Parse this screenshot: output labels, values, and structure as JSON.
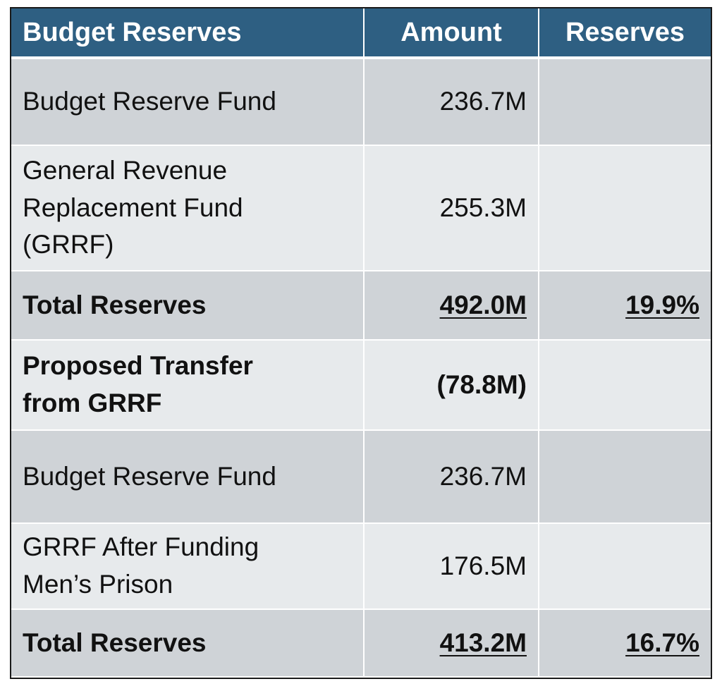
{
  "headers": {
    "col1": "Budget Reserves",
    "col2": "Amount",
    "col3": "Reserves"
  },
  "rows": [
    {
      "label": "Budget Reserve Fund",
      "amount": "236.7M",
      "reserves": ""
    },
    {
      "label": "General Revenue Replacement Fund (GRRF)",
      "amount": "255.3M",
      "reserves": ""
    },
    {
      "label": "Total Reserves",
      "amount": "492.0M",
      "reserves": "19.9%"
    },
    {
      "label": "Proposed Transfer from GRRF",
      "amount": "(78.8M)",
      "reserves": ""
    },
    {
      "label": "Budget Reserve Fund",
      "amount": "236.7M",
      "reserves": ""
    },
    {
      "label": "GRRF After Funding Men’s Prison",
      "amount": "176.5M",
      "reserves": ""
    },
    {
      "label": "Total Reserves",
      "amount": "413.2M",
      "reserves": "16.7%"
    }
  ]
}
